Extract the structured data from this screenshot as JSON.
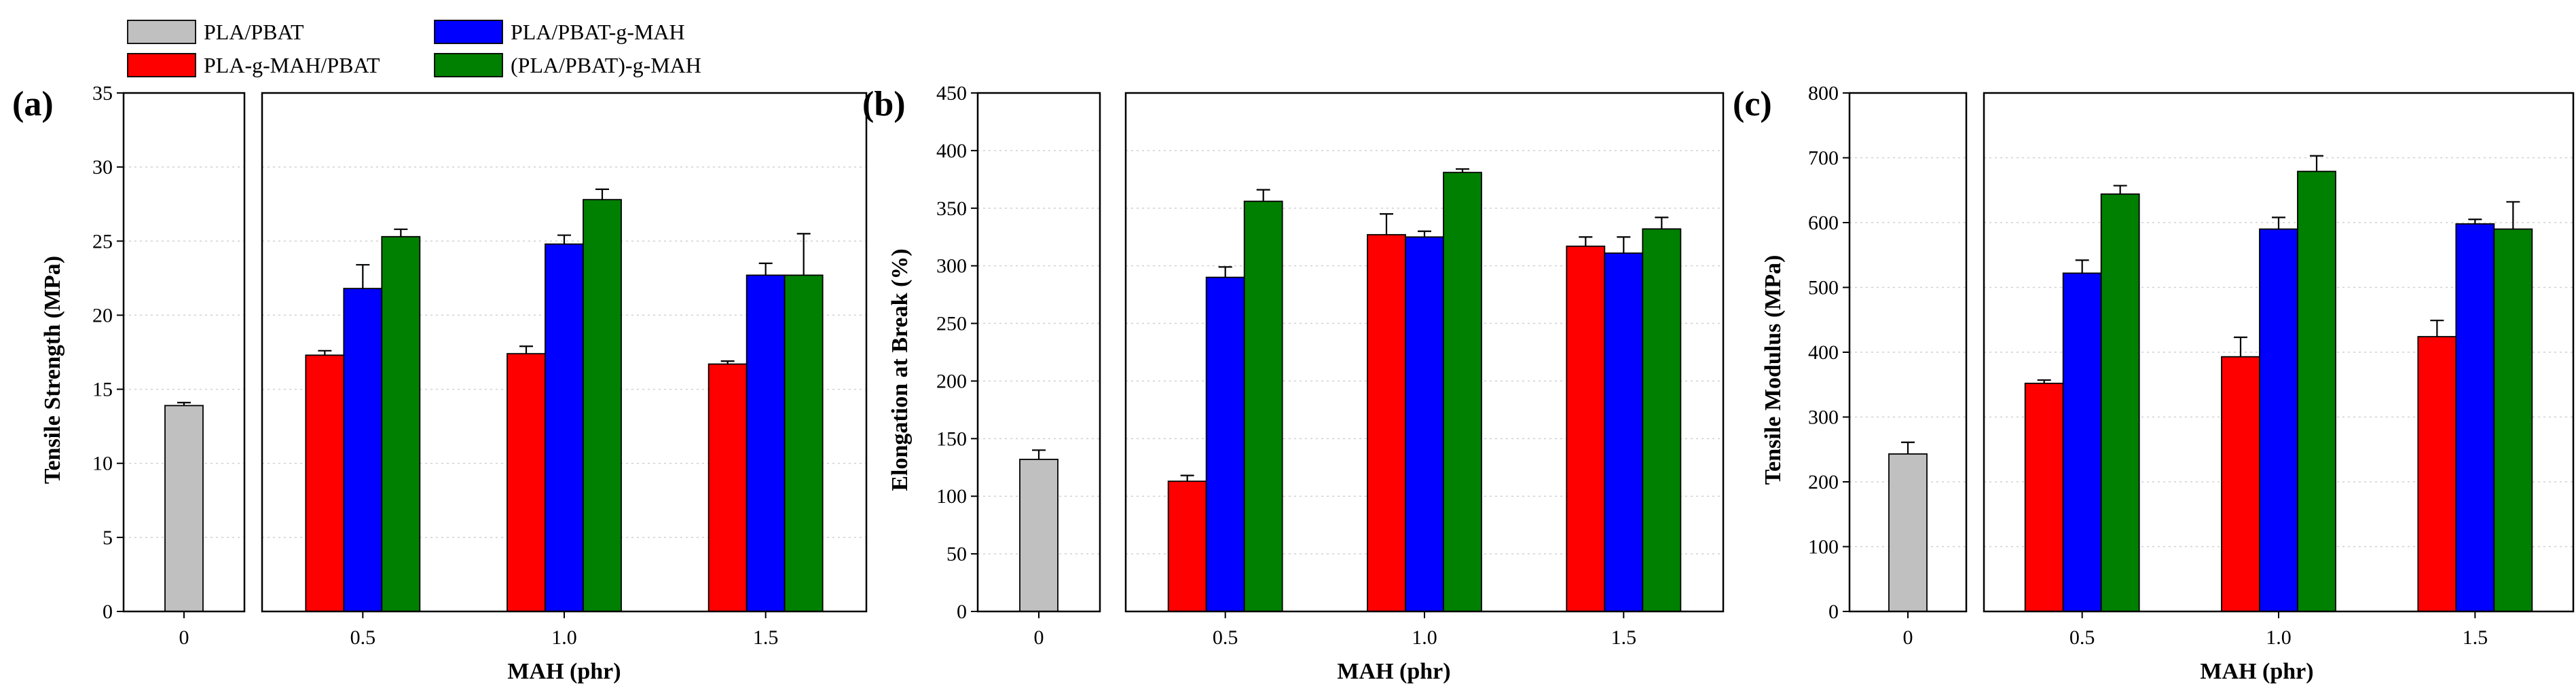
{
  "legend": {
    "entries": [
      {
        "label": "PLA/PBAT",
        "color": "#c0c0c0"
      },
      {
        "label": "PLA-g-MAH/PBAT",
        "color": "#ff0000"
      },
      {
        "label": "PLA/PBAT-g-MAH",
        "color": "#0000ff"
      },
      {
        "label": "(PLA/PBAT)-g-MAH",
        "color": "#008000"
      }
    ]
  },
  "chart_data": [
    {
      "type": "bar",
      "panel_label": "(a)",
      "ylabel": "Tensile Strength (MPa)",
      "xlabel": "MAH (phr)",
      "ylim": [
        0,
        35
      ],
      "yticks": [
        0,
        5,
        10,
        15,
        20,
        25,
        30,
        35
      ],
      "grid": true,
      "baseline": {
        "category": "0",
        "name": "PLA/PBAT",
        "value": 13.9,
        "error": 0.2
      },
      "categories": [
        "0.5",
        "1.0",
        "1.5"
      ],
      "series": [
        {
          "name": "PLA-g-MAH/PBAT",
          "values": [
            17.3,
            17.4,
            16.7
          ],
          "errors": [
            0.3,
            0.5,
            0.2
          ]
        },
        {
          "name": "PLA/PBAT-g-MAH",
          "values": [
            21.8,
            24.8,
            22.7
          ],
          "errors": [
            1.6,
            0.6,
            0.8
          ]
        },
        {
          "name": "(PLA/PBAT)-g-MAH",
          "values": [
            25.3,
            27.8,
            22.7
          ],
          "errors": [
            0.5,
            0.7,
            2.8
          ]
        }
      ]
    },
    {
      "type": "bar",
      "panel_label": "(b)",
      "ylabel": "Elongation at Break (%)",
      "xlabel": "MAH (phr)",
      "ylim": [
        0,
        450
      ],
      "yticks": [
        0,
        50,
        100,
        150,
        200,
        250,
        300,
        350,
        400,
        450
      ],
      "grid": true,
      "baseline": {
        "category": "0",
        "name": "PLA/PBAT",
        "value": 132,
        "error": 8
      },
      "categories": [
        "0.5",
        "1.0",
        "1.5"
      ],
      "series": [
        {
          "name": "PLA-g-MAH/PBAT",
          "values": [
            113,
            327,
            317
          ],
          "errors": [
            5,
            18,
            8
          ]
        },
        {
          "name": "PLA/PBAT-g-MAH",
          "values": [
            290,
            325,
            311
          ],
          "errors": [
            9,
            5,
            14
          ]
        },
        {
          "name": "(PLA/PBAT)-g-MAH",
          "values": [
            356,
            381,
            332
          ],
          "errors": [
            10,
            3,
            10
          ]
        }
      ]
    },
    {
      "type": "bar",
      "panel_label": "(c)",
      "ylabel": "Tensile Modulus (MPa)",
      "xlabel": "MAH (phr)",
      "ylim": [
        0,
        800
      ],
      "yticks": [
        0,
        100,
        200,
        300,
        400,
        500,
        600,
        700,
        800
      ],
      "grid": true,
      "baseline": {
        "category": "0",
        "name": "PLA/PBAT",
        "value": 243,
        "error": 18
      },
      "categories": [
        "0.5",
        "1.0",
        "1.5"
      ],
      "series": [
        {
          "name": "PLA-g-MAH/PBAT",
          "values": [
            352,
            393,
            424
          ],
          "errors": [
            5,
            30,
            25
          ]
        },
        {
          "name": "PLA/PBAT-g-MAH",
          "values": [
            522,
            590,
            598
          ],
          "errors": [
            20,
            18,
            7
          ]
        },
        {
          "name": "(PLA/PBAT)-g-MAH",
          "values": [
            644,
            679,
            590
          ],
          "errors": [
            13,
            24,
            42
          ]
        }
      ]
    }
  ]
}
